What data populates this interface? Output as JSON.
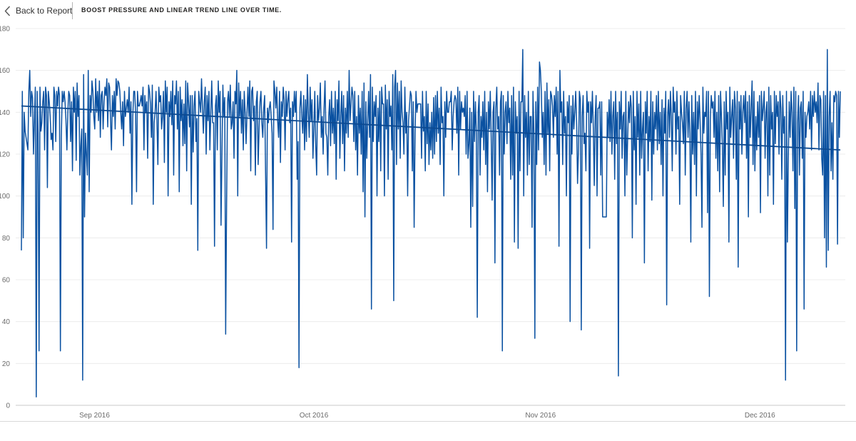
{
  "header": {
    "back_label": "Back to Report",
    "back_icon": "chevron-left-icon",
    "title": "BOOST PRESSURE AND LINEAR TREND LINE OVER TIME."
  },
  "colors": {
    "series": "#0a51a1",
    "gridline": "#ececec",
    "axis_text": "#6b6b6b"
  },
  "chart_data": {
    "type": "line",
    "title": "BOOST PRESSURE AND LINEAR TREND LINE OVER TIME.",
    "xlabel": "",
    "ylabel": "",
    "x_start": "2016-08-22",
    "x_end": "2016-12-12",
    "x_ticks": [
      {
        "date": "2016-09-01",
        "label": "Sep 2016"
      },
      {
        "date": "2016-10-01",
        "label": "Oct 2016"
      },
      {
        "date": "2016-11-01",
        "label": "Nov 2016"
      },
      {
        "date": "2016-12-01",
        "label": "Dec 2016"
      }
    ],
    "ylim": [
      0,
      180
    ],
    "y_ticks": [
      0,
      20,
      40,
      60,
      80,
      100,
      120,
      140,
      160,
      180
    ],
    "grid": true,
    "legend": "none",
    "series": [
      {
        "values": [
          74,
          150,
          80,
          140,
          131,
          128,
          125,
          122,
          150,
          160,
          138,
          150,
          147,
          120,
          136,
          152,
          4,
          150,
          130,
          26,
          152,
          131,
          135,
          145,
          150,
          122,
          152,
          148,
          104,
          150,
          145,
          138,
          127,
          130,
          122,
          152,
          148,
          126,
          150,
          143,
          152,
          148,
          26,
          128,
          150,
          145,
          150,
          145,
          136,
          122,
          140,
          150,
          148,
          126,
          145,
          112,
          152,
          140,
          150,
          117,
          154,
          138,
          148,
          110,
          124,
          132,
          12,
          158,
          90,
          130,
          120,
          110,
          160,
          102,
          148,
          140,
          155,
          150,
          138,
          132,
          156,
          140,
          150,
          136,
          155,
          128,
          148,
          150,
          132,
          145,
          152,
          148,
          156,
          133,
          154,
          152,
          136,
          122,
          148,
          138,
          150,
          132,
          156,
          148,
          155,
          154,
          150,
          140,
          132,
          145,
          124,
          150,
          138,
          142,
          146,
          140,
          152,
          130,
          145,
          96,
          138,
          150,
          150,
          140,
          102,
          150,
          143,
          143,
          145,
          148,
          143,
          152,
          122,
          148,
          140,
          145,
          118,
          153,
          150,
          144,
          128,
          153,
          96,
          135,
          140,
          150,
          136,
          115,
          152,
          145,
          148,
          132,
          138,
          150,
          116,
          155,
          140,
          152,
          100,
          145,
          138,
          150,
          134,
          155,
          110,
          148,
          144,
          155,
          132,
          150,
          102,
          152,
          136,
          146,
          124,
          144,
          125,
          155,
          112,
          154,
          145,
          133,
          148,
          96,
          148,
          121,
          143,
          150,
          126,
          137,
          74,
          150,
          145,
          140,
          156,
          142,
          130,
          145,
          152,
          120,
          148,
          136,
          150,
          122,
          140,
          155,
          135,
          135,
          76,
          143,
          148,
          122,
          155,
          140,
          150,
          86,
          120,
          153,
          138,
          147,
          34,
          96,
          145,
          150,
          138,
          153,
          132,
          135,
          145,
          118,
          150,
          144,
          160,
          100,
          154,
          138,
          150,
          130,
          146,
          122,
          150,
          140,
          125,
          140,
          152,
          138,
          155,
          112,
          150,
          152,
          136,
          143,
          110,
          145,
          150,
          115,
          132,
          145,
          150,
          135,
          128,
          142,
          148,
          110,
          75,
          142,
          135,
          142,
          145,
          138,
          130,
          84,
          155,
          150,
          142,
          152,
          136,
          128,
          150,
          116,
          145,
          138,
          152,
          146,
          122,
          150,
          138,
          146,
          150,
          135,
          142,
          78,
          145,
          138,
          150,
          140,
          150,
          108,
          126,
          18,
          142,
          150,
          138,
          130,
          148,
          122,
          146,
          126,
          158,
          140,
          128,
          152,
          136,
          146,
          118,
          132,
          150,
          124,
          110,
          148,
          136,
          142,
          154,
          128,
          138,
          120,
          142,
          155,
          130,
          128,
          110,
          138,
          146,
          124,
          150,
          130,
          142,
          125,
          150,
          108,
          146,
          136,
          155,
          118,
          138,
          150,
          125,
          148,
          112,
          142,
          130,
          150,
          128,
          160,
          136,
          144,
          152,
          148,
          126,
          150,
          122,
          138,
          110,
          148,
          130,
          142,
          120,
          150,
          102,
          154,
          90,
          145,
          118,
          136,
          150,
          128,
          158,
          46,
          152,
          126,
          145,
          138,
          148,
          100,
          142,
          126,
          150,
          112,
          152,
          144,
          144,
          100,
          153,
          132,
          146,
          108,
          150,
          138,
          143,
          122,
          158,
          50,
          152,
          160,
          115,
          154,
          132,
          150,
          118,
          155,
          140,
          135,
          120,
          152,
          130,
          140,
          100,
          136,
          143,
          150,
          148,
          112,
          145,
          85,
          130,
          150,
          140,
          144,
          144,
          144,
          144,
          118,
          150,
          131,
          138,
          112,
          150,
          125,
          144,
          115,
          135,
          122,
          140,
          118,
          147,
          120,
          148,
          126,
          150,
          130,
          142,
          115,
          152,
          135,
          138,
          100,
          145,
          128,
          150,
          140,
          140,
          145,
          145,
          150,
          122,
          138,
          145,
          148,
          146,
          130,
          152,
          110,
          150,
          132,
          145,
          140,
          142,
          138,
          148,
          120,
          150,
          118,
          125,
          142,
          85,
          140,
          95,
          150,
          126,
          145,
          130,
          42,
          140,
          148,
          110,
          138,
          128,
          145,
          122,
          150,
          115,
          140,
          102,
          145,
          132,
          150,
          128,
          98,
          140,
          145,
          68,
          142,
          152,
          132,
          138,
          110,
          145,
          150,
          26,
          148,
          120,
          140,
          145,
          125,
          150,
          135,
          142,
          108,
          148,
          110,
          152,
          78,
          145,
          130,
          138,
          75,
          150,
          112,
          145,
          145,
          170,
          100,
          148,
          128,
          140,
          110,
          150,
          115,
          138,
          138,
          85,
          150,
          130,
          32,
          145,
          115,
          152,
          122,
          164,
          160,
          150,
          128,
          140,
          115,
          150,
          110,
          154,
          130,
          146,
          112,
          150,
          148,
          143,
          128,
          148,
          138,
          152,
          120,
          150,
          76,
          160,
          140,
          145,
          115,
          150,
          130,
          138,
          100,
          145,
          135,
          148,
          40,
          143,
          120,
          148,
          132,
          140,
          150,
          135,
          106,
          122,
          150,
          146,
          36,
          138,
          148,
          125,
          130,
          112,
          150,
          140,
          145,
          75,
          145,
          135,
          150,
          132,
          105,
          138,
          148,
          100,
          142,
          142,
          145,
          110,
          145,
          90,
          90,
          90,
          90,
          90,
          140,
          128,
          146,
          126,
          150,
          120,
          138,
          145,
          108,
          150,
          125,
          140,
          14,
          145,
          132,
          150,
          118,
          138,
          140,
          100,
          150,
          110,
          128,
          145,
          135,
          148,
          142,
          80,
          150,
          122,
          138,
          96,
          150,
          128,
          144,
          110,
          150,
          118,
          132,
          140,
          68,
          145,
          130,
          150,
          112,
          138,
          126,
          150,
          98,
          145,
          120,
          140,
          132,
          148,
          122,
          150,
          125,
          140,
          115,
          146,
          100,
          142,
          130,
          150,
          48,
          138,
          146,
          128,
          150,
          138,
          112,
          152,
          140,
          145,
          120,
          150,
          132,
          138,
          96,
          148,
          140,
          135,
          125,
          150,
          110,
          142,
          150,
          128,
          145,
          130,
          78,
          148,
          120,
          140,
          115,
          150,
          100,
          145,
          132,
          148,
          136,
          120,
          85,
          152,
          130,
          140,
          138,
          150,
          92,
          150,
          52,
          136,
          148,
          142,
          145,
          128,
          150,
          118,
          140,
          112,
          148,
          102,
          150,
          138,
          124,
          95,
          145,
          110,
          150,
          132,
          140,
          78,
          152,
          128,
          138,
          146,
          118,
          150,
          142,
          108,
          150,
          66,
          145,
          132,
          148,
          120,
          140,
          148,
          135,
          150,
          118,
          145,
          90,
          148,
          128,
          142,
          155,
          115,
          150,
          112,
          138,
          122,
          145,
          128,
          148,
          92,
          150,
          136,
          142,
          150,
          118,
          140,
          145,
          100,
          152,
          110,
          148,
          132,
          140,
          96,
          150,
          125,
          148,
          138,
          145,
          120,
          150,
          142,
          108,
          148,
          130,
          138,
          12,
          150,
          78,
          118,
          145,
          128,
          150,
          140,
          112,
          152,
          94,
          150,
          26,
          135,
          148,
          110,
          142,
          145,
          118,
          150,
          46,
          140,
          128,
          138,
          140,
          145,
          132,
          150,
          122,
          148,
          138,
          150,
          140,
          145,
          135,
          154,
          122,
          148,
          146,
          118,
          110,
          150,
          80,
          148,
          66,
          170,
          74,
          138,
          150,
          112,
          135,
          108,
          148,
          145,
          150,
          148,
          77,
          150,
          128,
          150
        ]
      },
      {
        "name": "",
        "values": [
          143,
          122
        ]
      }
    ]
  }
}
